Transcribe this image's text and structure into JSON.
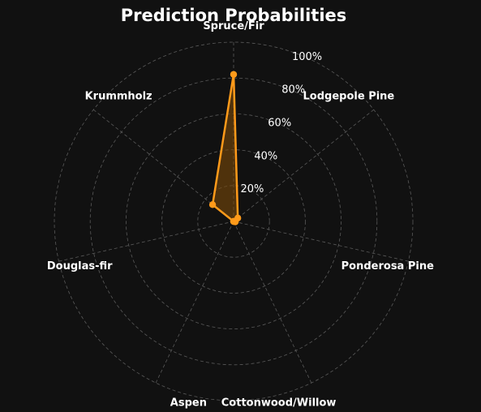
{
  "chart_data": {
    "type": "radar",
    "title": "Prediction Probabilities",
    "categories": [
      "Spruce/Fir",
      "Lodgepole Pine",
      "Ponderosa Pine",
      "Cottonwood/Willow",
      "Aspen",
      "Douglas-fir",
      "Krummholz"
    ],
    "values": [
      0.82,
      0.03,
      0.01,
      0.0,
      0.0,
      0.0,
      0.15
    ],
    "rlim": [
      0,
      1
    ],
    "rticks": [
      0.2,
      0.4,
      0.6,
      0.8,
      1.0
    ],
    "rtick_labels": [
      "20%",
      "40%",
      "60%",
      "80%",
      "100%"
    ],
    "grid": true,
    "legend": false,
    "colors": {
      "background": "#111111",
      "series": "#ff9a1a",
      "fill": "#7a4a0a",
      "grid": "#5a5a5a",
      "text": "#ffffff"
    }
  }
}
